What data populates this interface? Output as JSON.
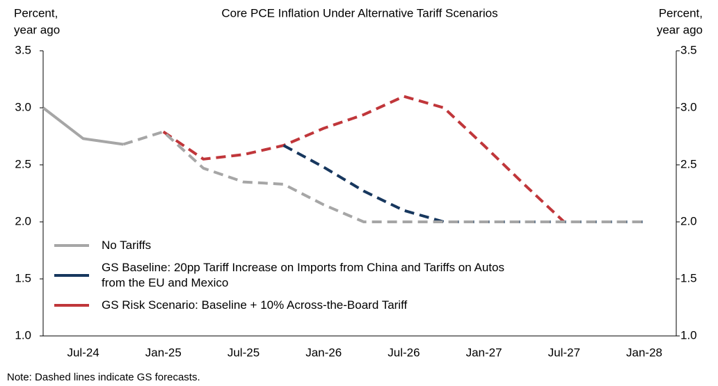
{
  "chart_data": {
    "type": "line",
    "title": "Core PCE Inflation Under Alternative Tariff Scenarios",
    "ylabel": [
      "Percent,",
      "year ago"
    ],
    "y2label": [
      "Percent,",
      "year ago"
    ],
    "categories": [
      null,
      "Jul-24",
      null,
      "Jan-25",
      null,
      "Jul-25",
      null,
      "Jan-26",
      null,
      "Jul-26",
      null,
      "Jan-27",
      null,
      "Jul-27",
      null,
      "Jan-28"
    ],
    "series": [
      {
        "name": "GS Risk Scenario: Baseline + 10% Across-the-Board Tariff",
        "color": "#c0363a",
        "dashed_from": 0,
        "values": [
          null,
          null,
          null,
          2.79,
          2.55,
          2.59,
          2.67,
          2.82,
          2.94,
          3.1,
          3.0,
          2.67,
          2.33,
          2.0,
          2.0,
          2.0
        ]
      },
      {
        "name": "GS Baseline: 20pp Tariff Increase on Imports from China and Tariffs on Autos from the EU and Mexico",
        "color": "#17375e",
        "dashed_from": 0,
        "values": [
          null,
          null,
          null,
          null,
          null,
          null,
          2.67,
          2.48,
          2.27,
          2.1,
          2.0,
          2.0,
          2.0,
          2.0,
          2.0,
          2.0
        ]
      },
      {
        "name": "No Tariffs",
        "color": "#a6a6a6",
        "dashed_from": 2,
        "values": [
          3.0,
          2.73,
          2.68,
          2.79,
          2.47,
          2.35,
          2.33,
          2.15,
          2.0,
          2.0,
          2.0,
          2.0,
          2.0,
          2.0,
          2.0,
          2.0
        ]
      }
    ],
    "legend_order": [
      2,
      1,
      0
    ],
    "legend": "lower left",
    "ylim": [
      1.0,
      3.5
    ],
    "yticks": [
      {
        "value": 1,
        "label": "1.0"
      },
      {
        "value": 1.5,
        "label": "1.5"
      },
      {
        "value": 2,
        "label": "2.0"
      },
      {
        "value": 2.5,
        "label": "2.5"
      },
      {
        "value": 3,
        "label": "3.0"
      },
      {
        "value": 3.5,
        "label": "3.5"
      }
    ],
    "y2lim": [
      1.0,
      3.5
    ],
    "y2ticks": [
      {
        "value": 1,
        "label": "1.0"
      },
      {
        "value": 1.5,
        "label": "1.5"
      },
      {
        "value": 2,
        "label": "2.0"
      },
      {
        "value": 2.5,
        "label": "2.5"
      },
      {
        "value": 3,
        "label": "3.0"
      },
      {
        "value": 3.5,
        "label": "3.5"
      }
    ],
    "note": "Note: Dashed lines indicate GS forecasts."
  }
}
